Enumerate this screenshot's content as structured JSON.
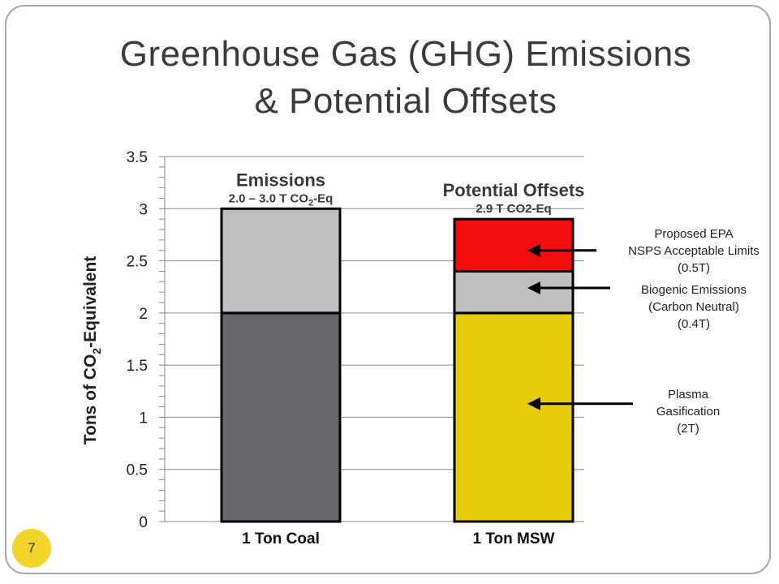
{
  "slide": {
    "title_line1": "Greenhouse Gas (GHG) Emissions",
    "title_line2": "& Potential Offsets",
    "page_number": "7"
  },
  "chart_data": {
    "type": "bar",
    "stacked": true,
    "categories": [
      "1 Ton Coal",
      "1 Ton MSW"
    ],
    "ylabel_parts": [
      "Tons of CO",
      "2",
      "-Equivalent"
    ],
    "ylim": [
      0,
      3.5
    ],
    "yticks": [
      "0",
      "0.5",
      "1",
      "1.5",
      "2",
      "2.5",
      "3",
      "3.5"
    ],
    "grid": true,
    "bars": [
      {
        "category": "1 Ton Coal",
        "header": "Emissions",
        "subheader_parts": [
          "2.0 – 3.0 T CO",
          "2",
          "-Eq"
        ],
        "segments": [
          {
            "value": 2.0,
            "color": "#67676b"
          },
          {
            "value": 1.0,
            "color": "#bfbfbf"
          }
        ]
      },
      {
        "category": "1 Ton MSW",
        "header": "Potential Offsets",
        "subheader_parts": [
          "2.9 T CO2-Eq"
        ],
        "segments": [
          {
            "value": 2.0,
            "color": "#e8cc0a"
          },
          {
            "value": 0.4,
            "color": "#bfbfbf"
          },
          {
            "value": 0.5,
            "color": "#f40f0f"
          }
        ]
      }
    ],
    "annotations": [
      {
        "name": "annotation-epa-limits",
        "lines": [
          "Proposed EPA",
          "NSPS Acceptable Limits",
          "(0.5T)"
        ],
        "arrow_y_value": 2.6
      },
      {
        "name": "annotation-biogenic",
        "lines": [
          "Biogenic Emissions",
          "(Carbon Neutral)",
          "(0.4T)"
        ],
        "arrow_y_value": 2.24
      },
      {
        "name": "annotation-plasma",
        "lines": [
          "Plasma",
          "Gasification",
          "(2T)"
        ],
        "arrow_y_value": 1.13
      }
    ]
  }
}
